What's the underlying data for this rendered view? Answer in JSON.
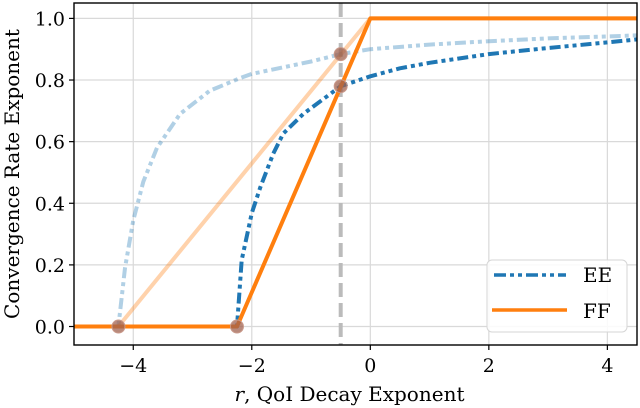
{
  "chart_data": {
    "type": "line",
    "title": "",
    "xlabel": "r, QoI Decay Exponent",
    "xlabel_italic_part": "r",
    "xlabel_rest": ", QoI Decay Exponent",
    "ylabel": "Convergence Rate Exponent",
    "xlim": [
      -5.0,
      4.5
    ],
    "ylim": [
      -0.06,
      1.05
    ],
    "xticks": [
      -4,
      -2,
      0,
      2,
      4
    ],
    "xtick_labels": [
      "−4",
      "−2",
      "0",
      "2",
      "4"
    ],
    "yticks": [
      0.0,
      0.2,
      0.4,
      0.6,
      0.8,
      1.0
    ],
    "ytick_labels": [
      "0.0",
      "0.2",
      "0.4",
      "0.6",
      "0.8",
      "1.0"
    ],
    "grid": true,
    "legend_position": "lower right",
    "vertical_line": {
      "x": -0.5,
      "style": "dashed",
      "color": "#bbbbbb"
    },
    "series": [
      {
        "name": "EE",
        "in_legend": true,
        "color": "#1f77b4",
        "style": "dash-dot-dot",
        "x": [
          -5.0,
          -2.25,
          -2.17,
          -2.0,
          -1.86,
          -1.64,
          -1.47,
          -1.13,
          -0.5,
          0.0,
          0.5,
          1.0,
          2.0,
          3.0,
          4.0,
          4.5
        ],
        "values": [
          0.0,
          0.0,
          0.216,
          0.368,
          0.45,
          0.56,
          0.626,
          0.69,
          0.78,
          0.812,
          0.838,
          0.856,
          0.884,
          0.904,
          0.922,
          0.932
        ]
      },
      {
        "name": "EE (faded)",
        "in_legend": false,
        "color": "#1f77b4",
        "opacity": 0.35,
        "style": "dash-dot-dot",
        "x": [
          -5.0,
          -4.25,
          -4.14,
          -4.0,
          -3.83,
          -3.6,
          -3.21,
          -2.71,
          -2.2,
          -2.0,
          -1.0,
          -0.5,
          0.0,
          1.0,
          2.0,
          3.0,
          4.5
        ],
        "values": [
          0.0,
          0.0,
          0.19,
          0.345,
          0.47,
          0.58,
          0.69,
          0.765,
          0.806,
          0.82,
          0.86,
          0.884,
          0.9,
          0.915,
          0.926,
          0.935,
          0.945
        ]
      },
      {
        "name": "FF",
        "in_legend": true,
        "color": "#ff7f0e",
        "style": "solid",
        "x": [
          -5.0,
          -2.25,
          0.0,
          4.5
        ],
        "values": [
          0.0,
          0.0,
          1.0,
          1.0
        ]
      },
      {
        "name": "FF (faded)",
        "in_legend": false,
        "color": "#ff7f0e",
        "opacity": 0.35,
        "style": "solid",
        "x": [
          -5.0,
          -4.25,
          0.0,
          4.5
        ],
        "values": [
          0.0,
          0.0,
          1.0,
          1.0
        ]
      }
    ],
    "markers": [
      {
        "x": -4.25,
        "y": 0.0
      },
      {
        "x": -2.25,
        "y": 0.0
      },
      {
        "x": -0.5,
        "y": 0.884
      },
      {
        "x": -0.5,
        "y": 0.78
      }
    ],
    "marker_color": "#a0614f"
  },
  "legend": {
    "items": [
      {
        "label": "EE"
      },
      {
        "label": "FF"
      }
    ]
  }
}
